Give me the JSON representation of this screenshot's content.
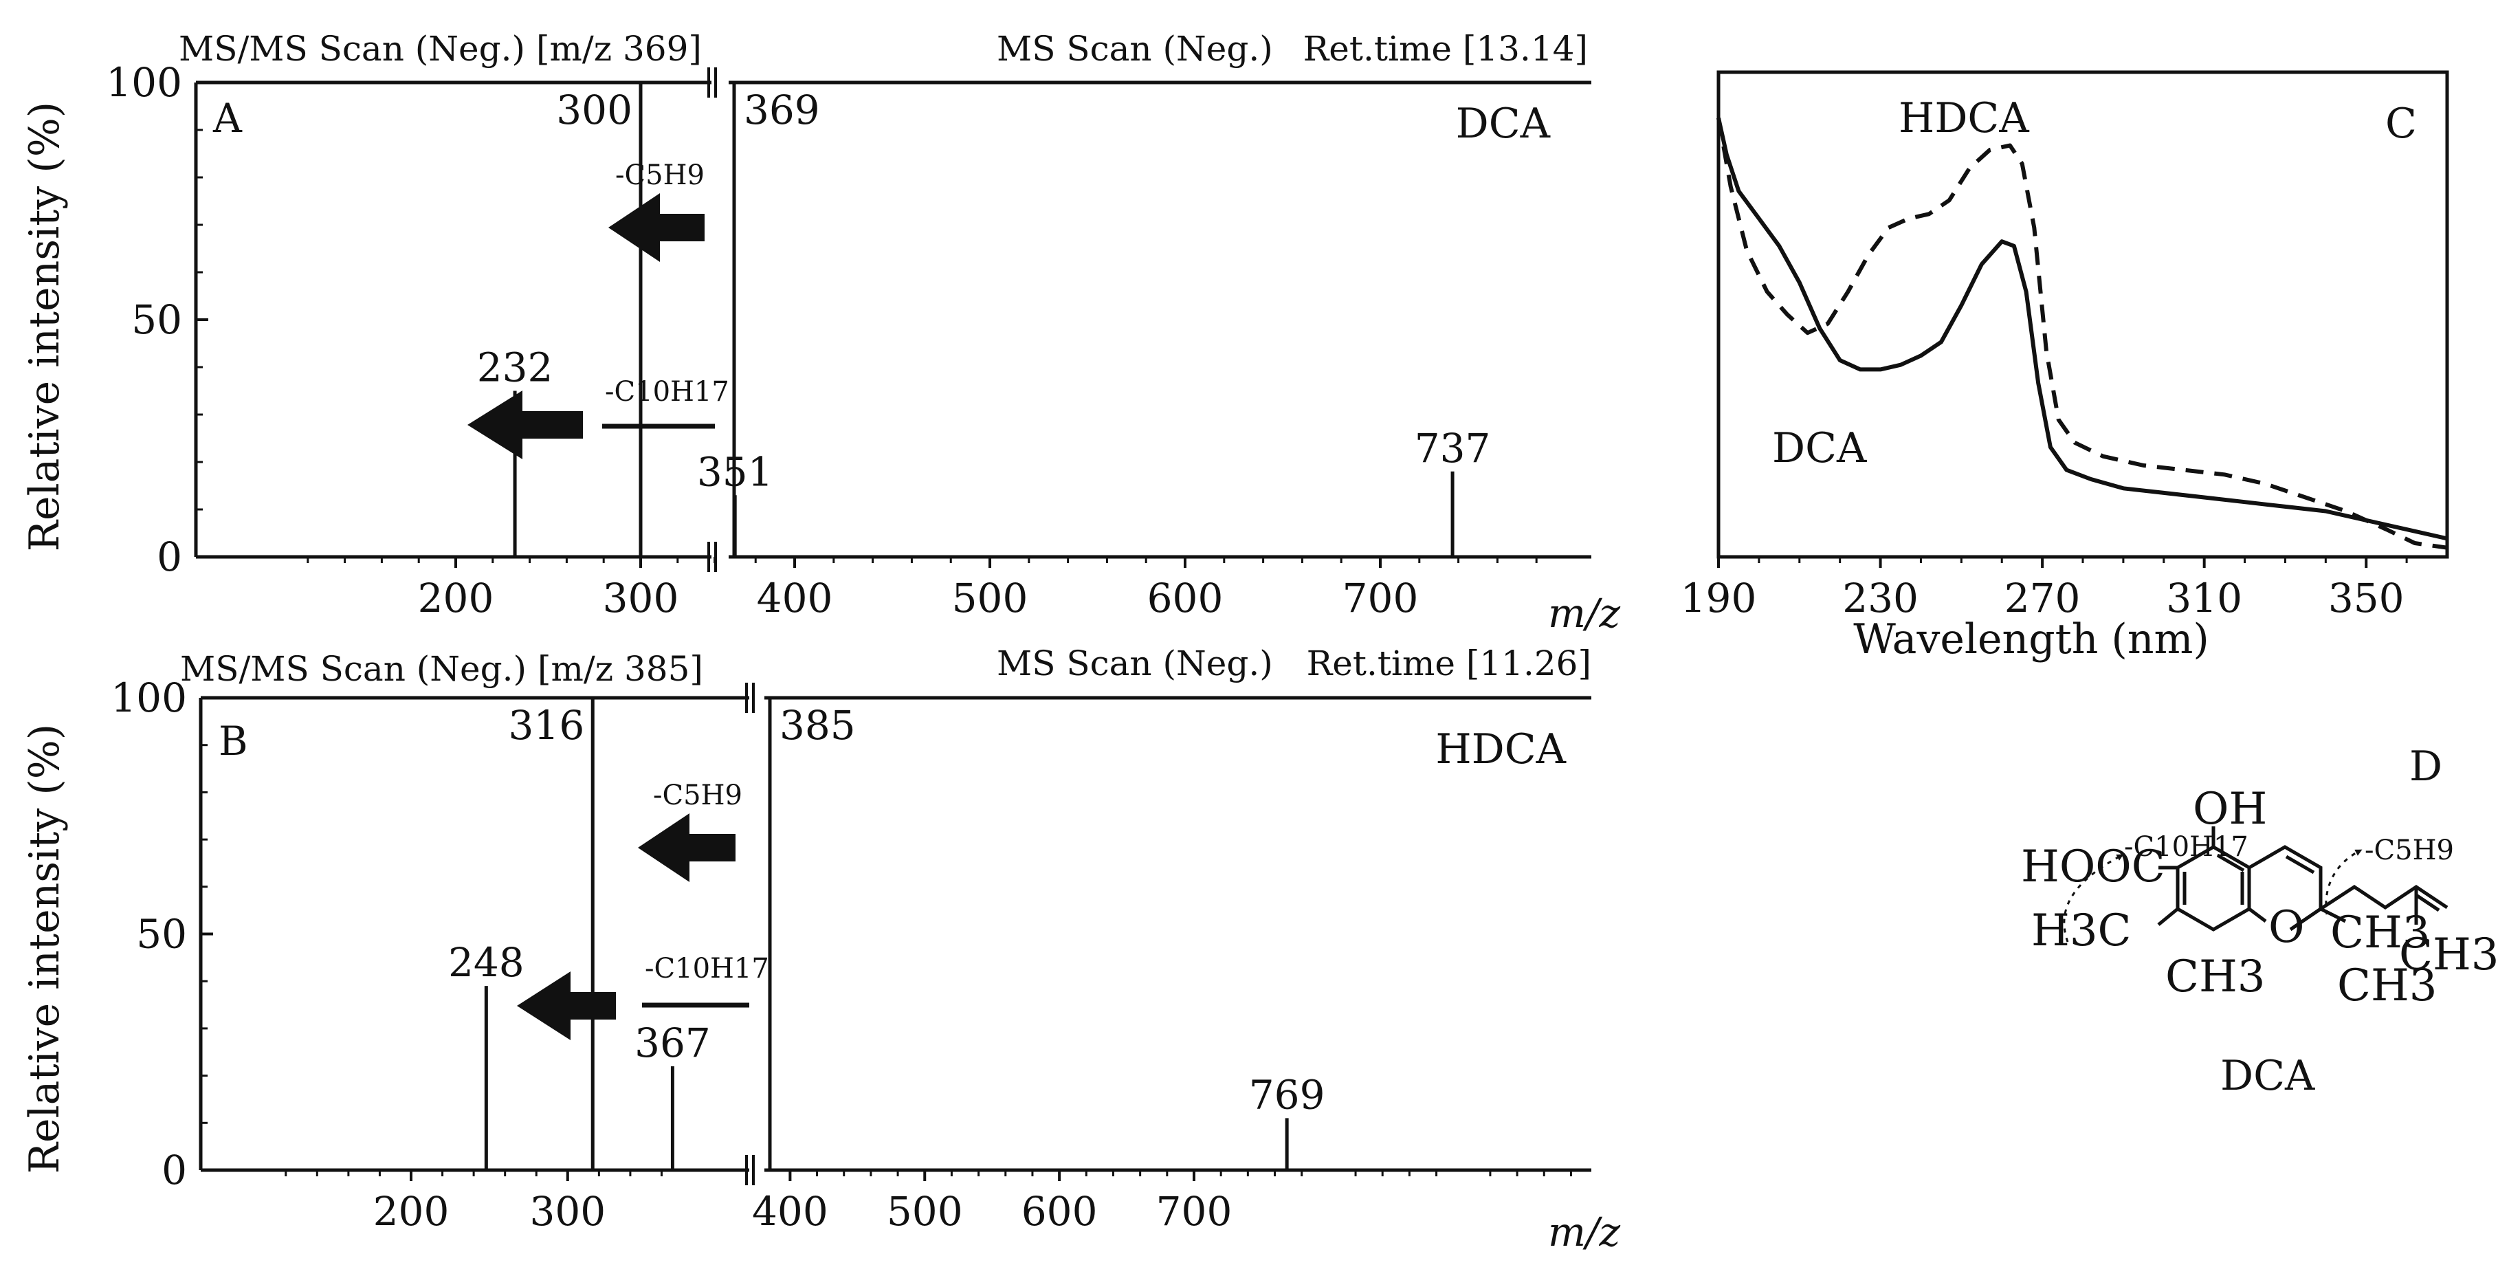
{
  "panels": {
    "A": {
      "letter": "A",
      "msms_header": "MS/MS Scan (Neg.) [m/z 369]",
      "ms_header": "MS Scan (Neg.)",
      "ret_time": "Ret.time [13.14]",
      "compound": "DCA",
      "ylabel": "Relative intensity (%)",
      "xlabel": "m/z",
      "loss1": "-C5H9",
      "loss2": "-C10H17"
    },
    "B": {
      "letter": "B",
      "msms_header": "MS/MS Scan (Neg.) [m/z 385]",
      "ms_header": "MS Scan (Neg.)",
      "ret_time": "Ret.time [11.26]",
      "compound": "HDCA",
      "ylabel": "Relative intensity (%)",
      "xlabel": "m/z",
      "loss1": "-C5H9",
      "loss2": "-C10H17"
    },
    "C": {
      "letter": "C",
      "xlabel": "Wavelength (nm)",
      "series_labels": [
        "HDCA",
        "DCA"
      ]
    },
    "D": {
      "letter": "D",
      "compound": "DCA",
      "groups": {
        "oh": "OH",
        "hooc": "HOOC",
        "h3c": "H3C",
        "o": "O",
        "ch3_1": "CH3",
        "ch3_2": "CH3",
        "ch3_3": "CH3",
        "ch3_4": "CH3",
        "cut1": "-C10H17",
        "cut2": "-C5H9"
      }
    }
  },
  "chart_data": [
    {
      "panel": "A",
      "type": "bar",
      "subtype": "mass-spectrum",
      "title": "MS/MS Scan (Neg.) [m/z 369] | MS Scan (Neg.) Ret.time [13.14]",
      "xlabel": "m/z",
      "ylabel": "Relative intensity (%)",
      "xlim": [
        100,
        1000
      ],
      "ylim": [
        0,
        100
      ],
      "axis_break_between": [
        350,
        370
      ],
      "xticks": [
        200,
        300,
        400,
        500,
        600,
        700
      ],
      "yticks": [
        0,
        50,
        100
      ],
      "msms_peaks": [
        {
          "mz": 232,
          "intensity": 35,
          "label": "232"
        },
        {
          "mz": 300,
          "intensity": 100,
          "label": "300"
        },
        {
          "mz": 351,
          "intensity": 13,
          "label": "351"
        }
      ],
      "ms_peaks": [
        {
          "mz": 369,
          "intensity": 100,
          "label": "369"
        },
        {
          "mz": 737,
          "intensity": 18,
          "label": "737"
        }
      ],
      "annotations": [
        "DCA",
        "-C5H9",
        "-C10H17"
      ]
    },
    {
      "panel": "B",
      "type": "bar",
      "subtype": "mass-spectrum",
      "title": "MS/MS Scan (Neg.) [m/z 385] | MS Scan (Neg.) Ret.time [11.26]",
      "xlabel": "m/z",
      "ylabel": "Relative intensity (%)",
      "xlim": [
        100,
        1000
      ],
      "ylim": [
        0,
        100
      ],
      "axis_break_between": [
        366,
        386
      ],
      "xticks": [
        200,
        300,
        400,
        500,
        600,
        700
      ],
      "yticks": [
        0,
        50,
        100
      ],
      "msms_peaks": [
        {
          "mz": 248,
          "intensity": 39,
          "label": "248"
        },
        {
          "mz": 316,
          "intensity": 100,
          "label": "316"
        },
        {
          "mz": 367,
          "intensity": 22,
          "label": "367"
        }
      ],
      "ms_peaks": [
        {
          "mz": 385,
          "intensity": 100,
          "label": "385"
        },
        {
          "mz": 769,
          "intensity": 11,
          "label": "769"
        }
      ],
      "annotations": [
        "HDCA",
        "-C5H9",
        "-C10H17"
      ]
    },
    {
      "panel": "C",
      "type": "line",
      "subtype": "uv-spectrum",
      "xlabel": "Wavelength (nm)",
      "ylabel": "",
      "xlim": [
        190,
        370
      ],
      "ylim": [
        0,
        1
      ],
      "xticks": [
        190,
        230,
        270,
        310,
        350
      ],
      "series": [
        {
          "name": "HDCA",
          "style": "dashed",
          "x": [
            190,
            193,
            197,
            202,
            207,
            212,
            217,
            222,
            227,
            232,
            237,
            242,
            247,
            252,
            257,
            262,
            265,
            268,
            271,
            274,
            278,
            285,
            295,
            305,
            315,
            325,
            335,
            345,
            355,
            362,
            370
          ],
          "y": [
            0.96,
            0.81,
            0.67,
            0.58,
            0.53,
            0.49,
            0.51,
            0.58,
            0.66,
            0.72,
            0.74,
            0.75,
            0.78,
            0.85,
            0.89,
            0.9,
            0.86,
            0.72,
            0.45,
            0.3,
            0.25,
            0.22,
            0.2,
            0.19,
            0.18,
            0.16,
            0.13,
            0.1,
            0.06,
            0.03,
            0.02
          ]
        },
        {
          "name": "DCA",
          "style": "solid",
          "x": [
            190,
            192,
            195,
            200,
            205,
            210,
            215,
            220,
            225,
            230,
            235,
            240,
            245,
            250,
            255,
            260,
            263,
            266,
            269,
            272,
            276,
            282,
            290,
            300,
            310,
            320,
            330,
            340,
            350,
            360,
            370
          ],
          "y": [
            0.96,
            0.88,
            0.8,
            0.74,
            0.68,
            0.6,
            0.5,
            0.43,
            0.41,
            0.41,
            0.42,
            0.44,
            0.47,
            0.55,
            0.64,
            0.69,
            0.68,
            0.58,
            0.38,
            0.24,
            0.19,
            0.17,
            0.15,
            0.14,
            0.13,
            0.12,
            0.11,
            0.1,
            0.08,
            0.06,
            0.04
          ]
        }
      ]
    }
  ]
}
